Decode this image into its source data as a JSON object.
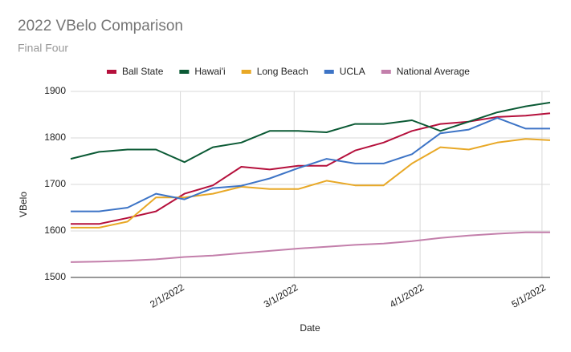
{
  "chart_data": {
    "type": "line",
    "title": "2022 VBelo Comparison",
    "subtitle": "Final Four",
    "x_label": "Date",
    "y_label": "VBelo",
    "x": [
      "2022-01-05",
      "2022-01-12",
      "2022-01-19",
      "2022-01-26",
      "2022-02-02",
      "2022-02-09",
      "2022-02-16",
      "2022-02-23",
      "2022-03-02",
      "2022-03-09",
      "2022-03-16",
      "2022-03-23",
      "2022-03-30",
      "2022-04-06",
      "2022-04-13",
      "2022-04-20",
      "2022-04-27",
      "2022-05-03"
    ],
    "series": [
      {
        "name": "Ball State",
        "color": "#b5103c",
        "values": [
          1615,
          1615,
          1628,
          1642,
          1680,
          1698,
          1738,
          1732,
          1740,
          1740,
          1773,
          1790,
          1815,
          1830,
          1835,
          1845,
          1848,
          1853
        ]
      },
      {
        "name": "Hawai'i",
        "color": "#0b5a35",
        "values": [
          1755,
          1770,
          1775,
          1775,
          1748,
          1780,
          1790,
          1815,
          1815,
          1812,
          1830,
          1830,
          1838,
          1815,
          1835,
          1855,
          1868,
          1876
        ]
      },
      {
        "name": "Long Beach",
        "color": "#e8a826",
        "values": [
          1607,
          1607,
          1620,
          1672,
          1672,
          1680,
          1695,
          1690,
          1690,
          1708,
          1698,
          1698,
          1745,
          1780,
          1775,
          1790,
          1798,
          1795
        ]
      },
      {
        "name": "UCLA",
        "color": "#3d74c6",
        "values": [
          1642,
          1642,
          1650,
          1680,
          1668,
          1692,
          1697,
          1713,
          1735,
          1755,
          1745,
          1745,
          1765,
          1810,
          1818,
          1843,
          1820,
          1820
        ]
      },
      {
        "name": "National Average",
        "color": "#c37fab",
        "values": [
          1533,
          1534,
          1536,
          1539,
          1544,
          1547,
          1552,
          1557,
          1562,
          1566,
          1570,
          1573,
          1578,
          1585,
          1590,
          1594,
          1597,
          1597
        ]
      }
    ],
    "xlim": [
      "2022-01-05",
      "2022-05-03"
    ],
    "xticks": [
      {
        "value": "2022-02-01",
        "label": "2/1/2022"
      },
      {
        "value": "2022-03-01",
        "label": "3/1/2022"
      },
      {
        "value": "2022-04-01",
        "label": "4/1/2022"
      },
      {
        "value": "2022-05-01",
        "label": "5/1/2022"
      }
    ],
    "ylim": [
      1500,
      1900
    ],
    "yticks": [
      1500,
      1600,
      1700,
      1800,
      1900
    ],
    "grid": true,
    "legend": "top"
  }
}
